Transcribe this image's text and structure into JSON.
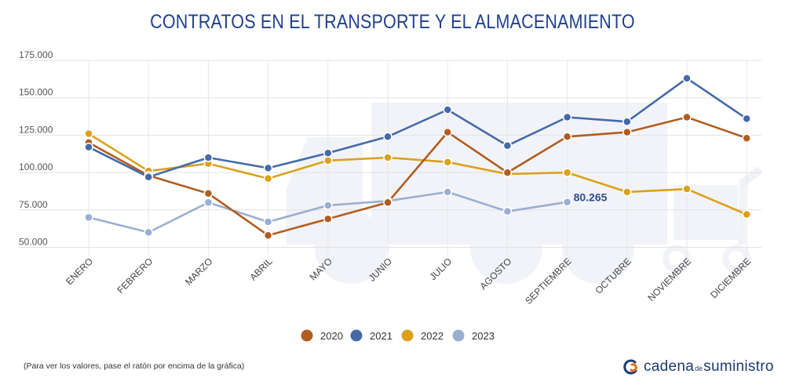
{
  "chart_data": {
    "type": "line",
    "title": "CONTRATOS EN EL TRANSPORTE Y EL ALMACENAMIENTO",
    "xlabel": "",
    "ylabel": "",
    "categories": [
      "ENERO",
      "FEBRERO",
      "MARZO",
      "ABRIL",
      "MAYO",
      "JUNIO",
      "JULIO",
      "AGOSTO",
      "SEPTIEMBRE",
      "OCTUBRE",
      "NOVIEMBRE",
      "DICIEMBRE"
    ],
    "y_ticks": [
      "175.000",
      "150.000",
      "125.000",
      "100.000",
      "75.000",
      "50.000"
    ],
    "ylim": [
      45000,
      175000
    ],
    "grid": true,
    "legend_position": "bottom",
    "series": [
      {
        "name": "2020",
        "color": "#b15d20",
        "values": [
          120000,
          98000,
          86000,
          58000,
          69000,
          80000,
          127000,
          100000,
          124000,
          127000,
          137000,
          123000
        ]
      },
      {
        "name": "2021",
        "color": "#456aa8",
        "values": [
          117000,
          97000,
          110000,
          103000,
          113000,
          124000,
          142000,
          118000,
          137000,
          134000,
          163000,
          136000
        ]
      },
      {
        "name": "2022",
        "color": "#dba11c",
        "values": [
          126000,
          101000,
          106000,
          96000,
          108000,
          110000,
          107000,
          99000,
          100000,
          87000,
          89000,
          72000
        ]
      },
      {
        "name": "2023",
        "color": "#9aaed2",
        "values": [
          70000,
          60000,
          80000,
          67000,
          78000,
          81000,
          87000,
          74000,
          80265,
          null,
          null,
          null
        ]
      }
    ],
    "annotation": {
      "series": "2023",
      "category": "SEPTIEMBRE",
      "text": "80.265"
    }
  },
  "footnote": "(Para ver los valores, pase el ratón por encima de la gráfica)",
  "brand": {
    "part1": "cadena",
    "part2": "de",
    "part3": "suministro"
  }
}
